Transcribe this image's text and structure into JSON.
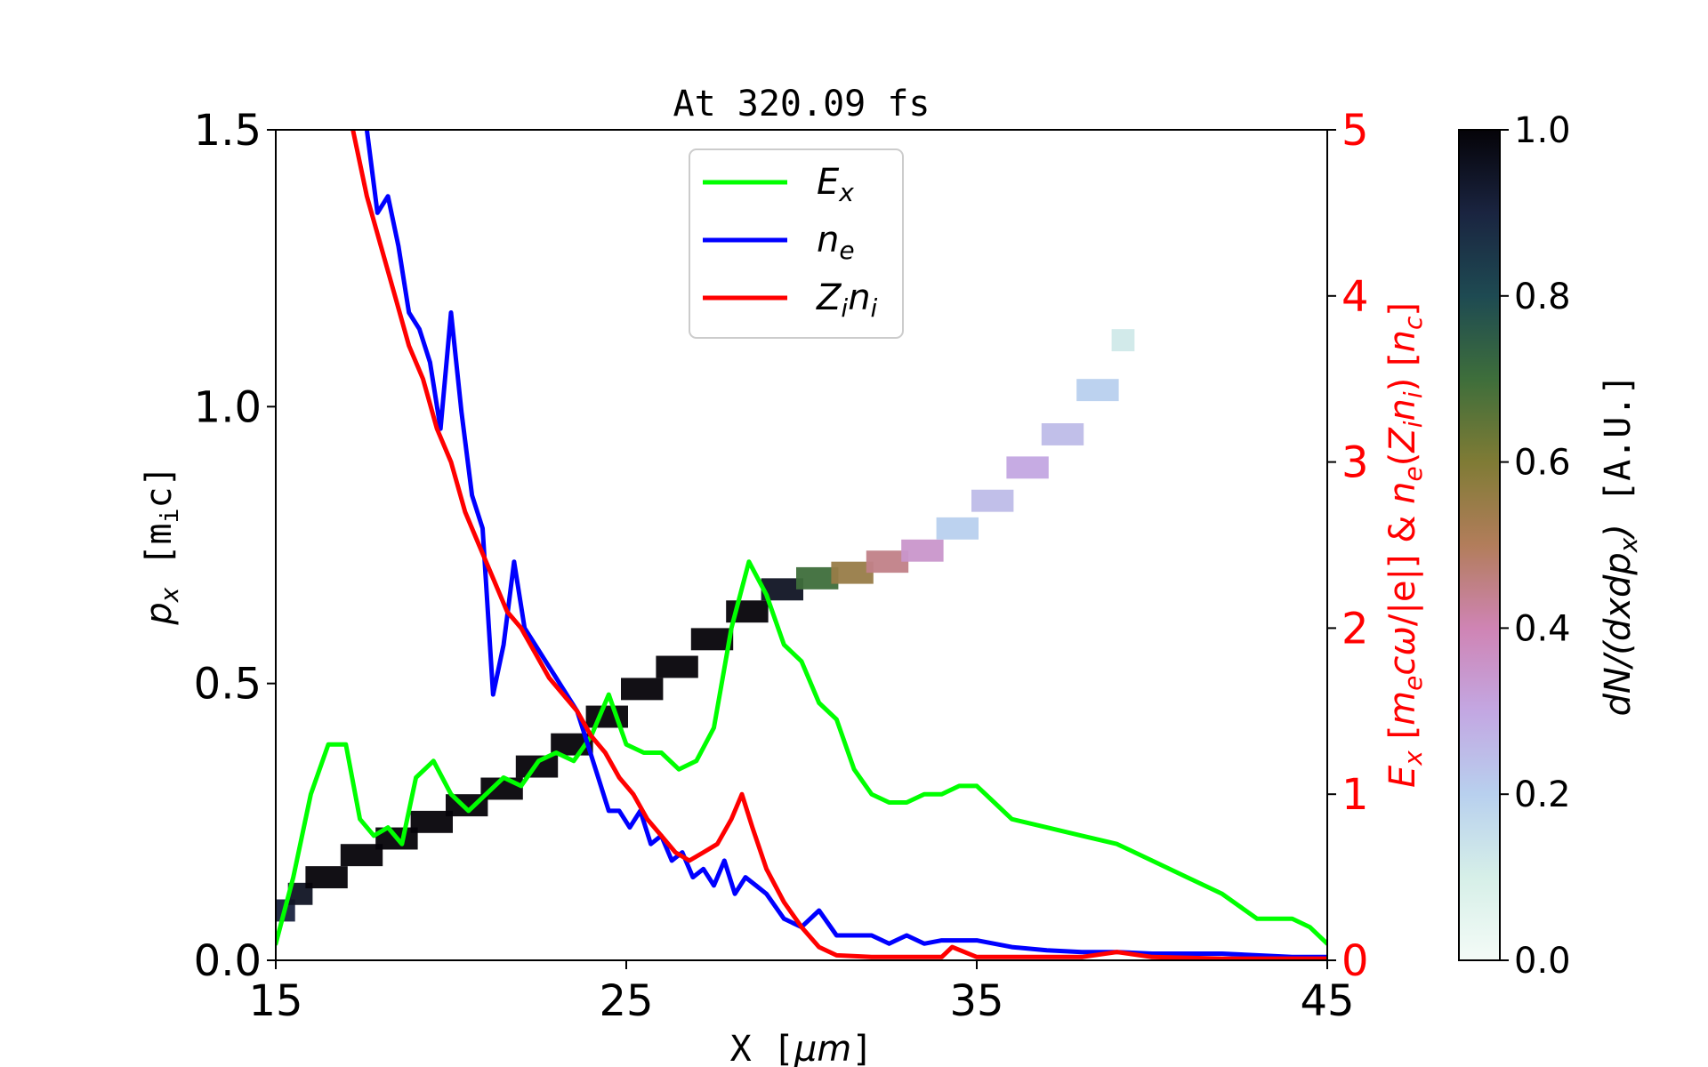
{
  "chart_data": {
    "type": "line",
    "title": "At 320.09 fs",
    "x_axis": {
      "label": "X [μm]",
      "lim": [
        15,
        45
      ],
      "ticks": [
        15,
        25,
        35,
        45
      ],
      "tick_labels": [
        "15",
        "25",
        "35",
        "45"
      ]
    },
    "y_axis_left": {
      "label": "p_x [m_i c]",
      "lim": [
        0.0,
        1.5
      ],
      "ticks": [
        0.0,
        0.5,
        1.0,
        1.5
      ],
      "tick_labels": [
        "0.0",
        "0.5",
        "1.0",
        "1.5"
      ]
    },
    "y_axis_right": {
      "label": "E_x [m_e cω/|e|] & n_e(Z_i n_i) [n_c]",
      "lim": [
        0,
        5
      ],
      "ticks": [
        0,
        1,
        2,
        3,
        4,
        5
      ],
      "tick_labels": [
        "0",
        "1",
        "2",
        "3",
        "4",
        "5"
      ],
      "color": "#ff0000"
    },
    "colorbar": {
      "label": "dN/(dxdp_x) [A.U.]",
      "lim": [
        0.0,
        1.0
      ],
      "ticks": [
        0.0,
        0.2,
        0.4,
        0.6,
        0.8,
        1.0
      ],
      "tick_labels": [
        "0.0",
        "0.2",
        "0.4",
        "0.6",
        "0.8",
        "1.0"
      ]
    },
    "legend": {
      "placement": "top-center",
      "entries": [
        {
          "label": "E_x",
          "color": "#00ff00"
        },
        {
          "label": "n_e",
          "color": "#0000ff"
        },
        {
          "label": "Z_i n_i",
          "color": "#ff0000"
        }
      ]
    },
    "phase_space": [
      [
        15.0,
        0.09,
        0.9
      ],
      [
        15.5,
        0.12,
        0.95
      ],
      [
        16.0,
        0.15,
        1.0
      ],
      [
        17.0,
        0.19,
        1.0
      ],
      [
        18.0,
        0.22,
        1.0
      ],
      [
        19.0,
        0.25,
        1.0
      ],
      [
        20.0,
        0.28,
        1.0
      ],
      [
        21.0,
        0.31,
        1.0
      ],
      [
        22.0,
        0.35,
        1.0
      ],
      [
        23.0,
        0.39,
        1.0
      ],
      [
        24.0,
        0.44,
        1.0
      ],
      [
        25.0,
        0.49,
        1.0
      ],
      [
        26.0,
        0.53,
        1.0
      ],
      [
        27.0,
        0.58,
        1.0
      ],
      [
        28.0,
        0.63,
        1.0
      ],
      [
        29.0,
        0.67,
        0.95
      ],
      [
        30.0,
        0.69,
        0.7
      ],
      [
        31.0,
        0.7,
        0.55
      ],
      [
        32.0,
        0.72,
        0.45
      ],
      [
        33.0,
        0.74,
        0.35
      ],
      [
        34.0,
        0.78,
        0.2
      ],
      [
        35.0,
        0.83,
        0.25
      ],
      [
        36.0,
        0.89,
        0.3
      ],
      [
        37.0,
        0.95,
        0.25
      ],
      [
        38.0,
        1.03,
        0.2
      ],
      [
        39.0,
        1.12,
        0.12
      ]
    ],
    "series": [
      {
        "name": "E_x",
        "color": "#00ff00",
        "x": [
          15,
          15.5,
          16,
          16.5,
          17,
          17.4,
          17.8,
          18.2,
          18.6,
          19.0,
          19.5,
          20.0,
          20.5,
          21.0,
          21.5,
          22.0,
          22.5,
          23.0,
          23.5,
          24.0,
          24.5,
          25.0,
          25.5,
          26.0,
          26.5,
          27.0,
          27.5,
          28.0,
          28.5,
          29.0,
          29.5,
          30.0,
          30.5,
          31.0,
          31.5,
          32.0,
          32.5,
          33.0,
          33.5,
          34.0,
          34.5,
          35.0,
          35.5,
          36.0,
          37.0,
          38.0,
          39.0,
          40.0,
          41.0,
          42.0,
          43.0,
          44.0,
          44.5,
          45.0
        ],
        "y": [
          0.1,
          0.5,
          1.0,
          1.3,
          1.3,
          0.85,
          0.75,
          0.8,
          0.7,
          1.1,
          1.2,
          1.0,
          0.9,
          1.0,
          1.1,
          1.05,
          1.2,
          1.25,
          1.2,
          1.35,
          1.6,
          1.3,
          1.25,
          1.25,
          1.15,
          1.2,
          1.4,
          2.0,
          2.4,
          2.2,
          1.9,
          1.8,
          1.55,
          1.45,
          1.15,
          1.0,
          0.95,
          0.95,
          1.0,
          1.0,
          1.05,
          1.05,
          0.95,
          0.85,
          0.8,
          0.75,
          0.7,
          0.6,
          0.5,
          0.4,
          0.25,
          0.25,
          0.2,
          0.1
        ]
      },
      {
        "name": "n_e",
        "color": "#0000ff",
        "x": [
          17.6,
          17.9,
          18.2,
          18.5,
          18.8,
          19.1,
          19.4,
          19.7,
          20.0,
          20.3,
          20.6,
          20.9,
          21.2,
          21.5,
          21.8,
          22.1,
          22.4,
          22.7,
          23.0,
          23.3,
          23.6,
          23.9,
          24.2,
          24.5,
          24.8,
          25.1,
          25.4,
          25.7,
          26.0,
          26.3,
          26.6,
          26.9,
          27.2,
          27.5,
          27.8,
          28.1,
          28.4,
          28.7,
          29.0,
          29.5,
          30.0,
          30.5,
          31.0,
          31.5,
          32.0,
          32.5,
          33.0,
          33.5,
          34.0,
          35.0,
          35.5,
          36.0,
          37.0,
          38.0,
          39.0,
          40.0,
          41.0,
          42.0,
          43.0,
          44.0,
          45.0
        ],
        "y": [
          5.0,
          4.5,
          4.6,
          4.3,
          3.9,
          3.8,
          3.6,
          3.2,
          3.9,
          3.3,
          2.8,
          2.6,
          1.6,
          1.9,
          2.4,
          2.0,
          1.9,
          1.8,
          1.7,
          1.6,
          1.5,
          1.3,
          1.1,
          0.9,
          0.9,
          0.8,
          0.9,
          0.7,
          0.75,
          0.6,
          0.65,
          0.5,
          0.55,
          0.45,
          0.6,
          0.4,
          0.5,
          0.45,
          0.4,
          0.25,
          0.2,
          0.3,
          0.15,
          0.15,
          0.15,
          0.1,
          0.15,
          0.1,
          0.12,
          0.12,
          0.1,
          0.08,
          0.06,
          0.05,
          0.05,
          0.04,
          0.04,
          0.04,
          0.03,
          0.02,
          0.02
        ]
      },
      {
        "name": "Z_i n_i",
        "color": "#ff0000",
        "x": [
          17.2,
          17.6,
          18.0,
          18.4,
          18.8,
          19.2,
          19.6,
          20.0,
          20.4,
          20.8,
          21.2,
          21.6,
          22.0,
          22.4,
          22.8,
          23.2,
          23.6,
          24.0,
          24.4,
          24.8,
          25.2,
          25.6,
          26.0,
          26.4,
          26.8,
          27.2,
          27.6,
          28.0,
          28.3,
          28.6,
          29.0,
          29.5,
          30.0,
          30.5,
          31.0,
          32.0,
          33.0,
          34.0,
          34.3,
          35.0,
          36.0,
          38.0,
          39.0,
          40.0,
          42.0,
          45.0
        ],
        "y": [
          5.0,
          4.6,
          4.3,
          4.0,
          3.7,
          3.5,
          3.2,
          3.0,
          2.7,
          2.5,
          2.3,
          2.1,
          2.0,
          1.85,
          1.7,
          1.6,
          1.5,
          1.35,
          1.25,
          1.1,
          1.0,
          0.85,
          0.75,
          0.65,
          0.6,
          0.65,
          0.7,
          0.85,
          1.0,
          0.8,
          0.55,
          0.35,
          0.2,
          0.08,
          0.03,
          0.02,
          0.02,
          0.02,
          0.08,
          0.02,
          0.02,
          0.02,
          0.05,
          0.02,
          0.01,
          0.01
        ]
      }
    ]
  }
}
